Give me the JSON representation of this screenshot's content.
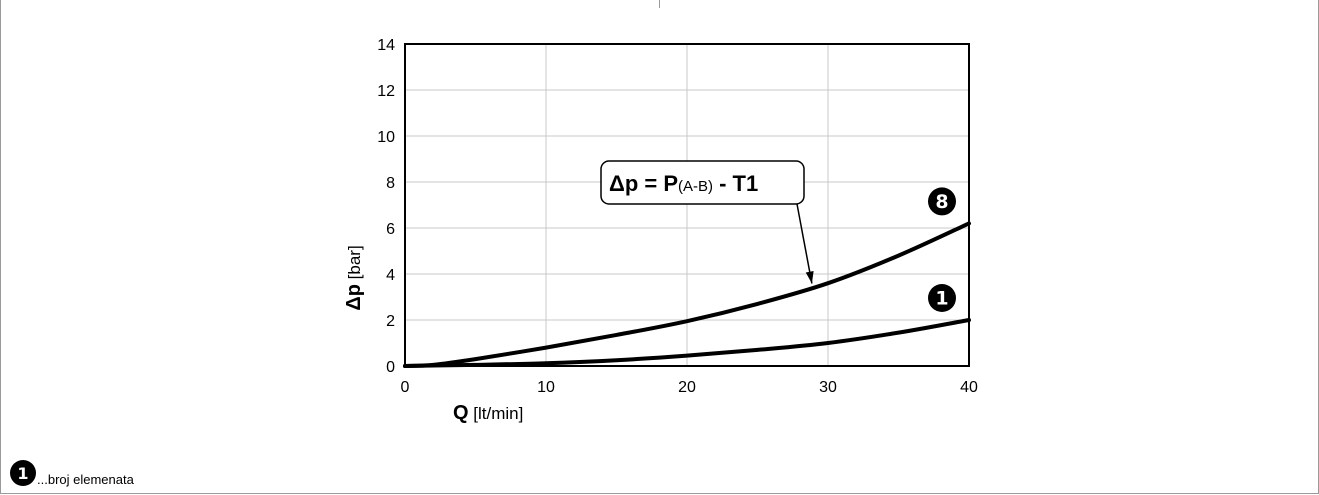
{
  "chart_data": {
    "type": "line",
    "x": [
      0,
      2,
      5,
      10,
      15,
      20,
      25,
      30,
      35,
      40
    ],
    "xlabel": {
      "bold": "Q",
      "unit": "[lt/min]"
    },
    "ylabel": {
      "bold": "Δp",
      "unit": "[bar]"
    },
    "xlim": [
      0,
      40
    ],
    "ylim": [
      0,
      14
    ],
    "xticks": [
      0,
      10,
      20,
      30,
      40
    ],
    "yticks": [
      0,
      2,
      4,
      6,
      8,
      10,
      12,
      14
    ],
    "grid": true,
    "series": [
      {
        "name": "8",
        "values": [
          0.0,
          0.05,
          0.3,
          0.8,
          1.35,
          1.95,
          2.7,
          3.6,
          4.8,
          6.2
        ]
      },
      {
        "name": "1",
        "values": [
          0.0,
          0.02,
          0.05,
          0.12,
          0.25,
          0.45,
          0.7,
          1.0,
          1.45,
          2.0
        ]
      }
    ],
    "annotation": {
      "main": "Δp = P",
      "sub": "(A-B)",
      "tail": " - T1",
      "points_to": {
        "x": 29,
        "y": 3.5
      }
    }
  },
  "footnote": {
    "badge": "1",
    "text": "...broj elemenata"
  }
}
